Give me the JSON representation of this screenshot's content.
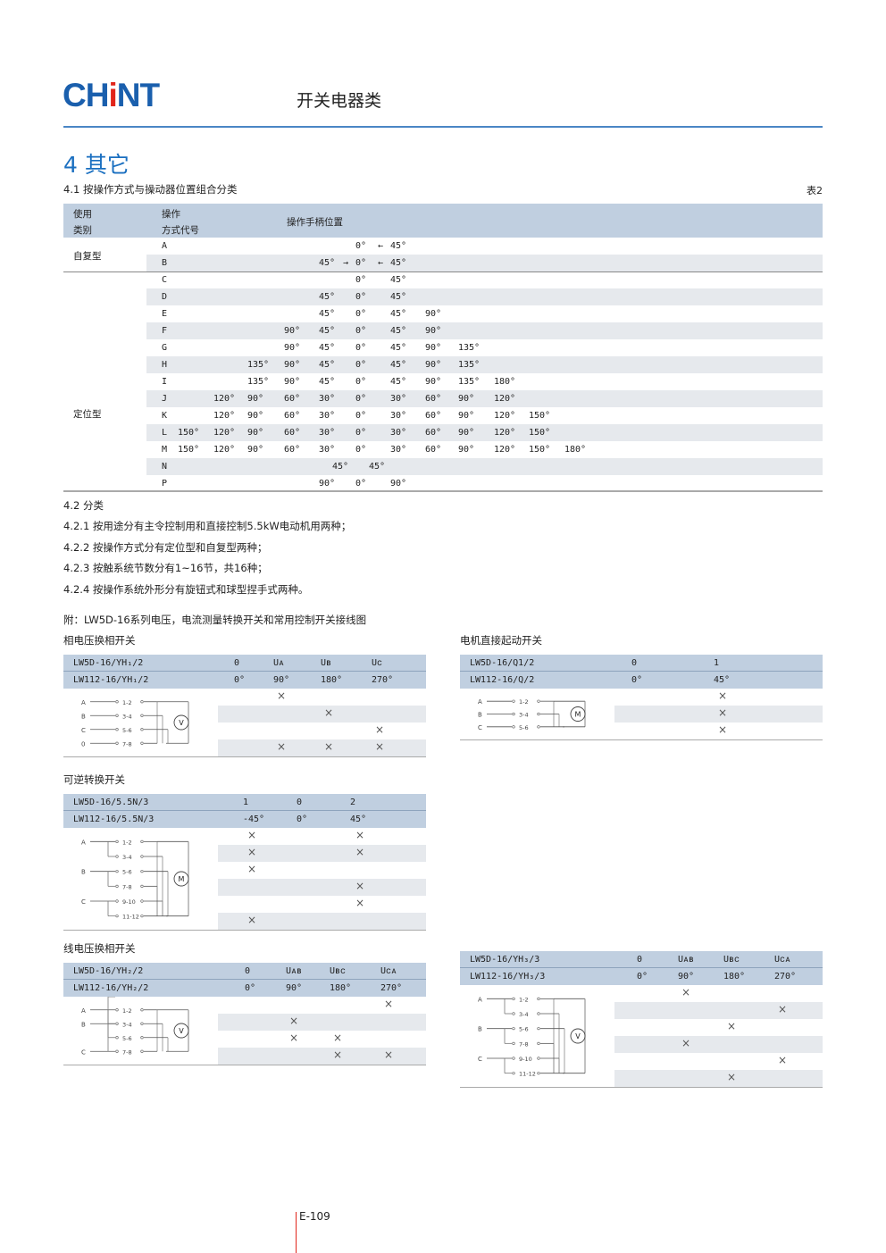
{
  "header": {
    "logo_pre": "CH",
    "logo_i": "i",
    "logo_post": "NT",
    "category": "开关电器类"
  },
  "section": {
    "title": "4 其它",
    "sub": "4.1 按操作方式与操动器位置组合分类",
    "table_no": "表2"
  },
  "main_table": {
    "headers": {
      "col1a": "使用",
      "col1b": "类别",
      "col2a": "操作",
      "col2b": "方式代号",
      "col3": "操作手柄位置"
    },
    "categories": [
      {
        "label": "自复型",
        "rows": [
          "A",
          "B"
        ]
      },
      {
        "label": "定位型",
        "rows": [
          "C",
          "D",
          "E",
          "F",
          "G",
          "H",
          "I",
          "J",
          "K",
          "L",
          "M",
          "N",
          "P"
        ]
      }
    ],
    "arrow_left": "←",
    "arrow_right": "→",
    "rows": [
      {
        "code": "A",
        "positions": [
          "",
          "",
          "",
          "",
          "",
          "0°",
          "45°",
          "",
          "",
          "",
          "",
          ""
        ],
        "arrows": [
          "",
          "left"
        ]
      },
      {
        "code": "B",
        "positions": [
          "",
          "",
          "",
          "",
          "45°",
          "0°",
          "45°",
          "",
          "",
          "",
          "",
          ""
        ],
        "arrows": [
          "right",
          "left"
        ]
      },
      {
        "code": "C",
        "positions": [
          "",
          "",
          "",
          "",
          "",
          "0°",
          "45°",
          "",
          "",
          "",
          "",
          ""
        ]
      },
      {
        "code": "D",
        "positions": [
          "",
          "",
          "",
          "",
          "45°",
          "0°",
          "45°",
          "",
          "",
          "",
          "",
          ""
        ]
      },
      {
        "code": "E",
        "positions": [
          "",
          "",
          "",
          "",
          "45°",
          "0°",
          "45°",
          "90°",
          "",
          "",
          "",
          ""
        ]
      },
      {
        "code": "F",
        "positions": [
          "",
          "",
          "",
          "90°",
          "45°",
          "0°",
          "45°",
          "90°",
          "",
          "",
          "",
          ""
        ]
      },
      {
        "code": "G",
        "positions": [
          "",
          "",
          "",
          "90°",
          "45°",
          "0°",
          "45°",
          "90°",
          "135°",
          "",
          "",
          ""
        ]
      },
      {
        "code": "H",
        "positions": [
          "",
          "",
          "135°",
          "90°",
          "45°",
          "0°",
          "45°",
          "90°",
          "135°",
          "",
          "",
          ""
        ]
      },
      {
        "code": "I",
        "positions": [
          "",
          "",
          "135°",
          "90°",
          "45°",
          "0°",
          "45°",
          "90°",
          "135°",
          "180°",
          "",
          ""
        ]
      },
      {
        "code": "J",
        "positions": [
          "",
          "120°",
          "90°",
          "60°",
          "30°",
          "0°",
          "30°",
          "60°",
          "90°",
          "120°",
          "",
          ""
        ]
      },
      {
        "code": "K",
        "positions": [
          "",
          "120°",
          "90°",
          "60°",
          "30°",
          "0°",
          "30°",
          "60°",
          "90°",
          "120°",
          "150°",
          ""
        ]
      },
      {
        "code": "L",
        "positions": [
          "150°",
          "120°",
          "90°",
          "60°",
          "30°",
          "0°",
          "30°",
          "60°",
          "90°",
          "120°",
          "150°",
          ""
        ]
      },
      {
        "code": "M",
        "positions": [
          "150°",
          "120°",
          "90°",
          "60°",
          "30°",
          "0°",
          "30°",
          "60°",
          "90°",
          "120°",
          "150°",
          "180°"
        ]
      },
      {
        "code": "N",
        "positions": [
          "",
          "",
          "",
          "",
          "45°",
          "45°",
          "",
          "",
          "",
          "",
          "",
          ""
        ]
      },
      {
        "code": "P",
        "positions": [
          "",
          "",
          "",
          "",
          "90°",
          "0°",
          "90°",
          "",
          "",
          "",
          "",
          ""
        ]
      }
    ]
  },
  "classification": {
    "title": "4.2 分类",
    "items": [
      "4.2.1 按用途分有主令控制用和直接控制5.5kW电动机用两种；",
      "4.2.2 按操作方式分有定位型和自复型两种；",
      "4.2.3 按触系统节数分有1~16节，共16种；",
      "4.2.4 按操作系统外形分有旋钮式和球型捏手式两种。"
    ]
  },
  "appendix": "附：LW5D-16系列电压，电流测量转换开关和常用控制开关接线图",
  "switches": [
    {
      "id": "yh1",
      "title": "相电压换相开关",
      "header1": [
        "LW5D-16/YH₁/2",
        "0",
        "Uᴀ",
        "Uʙ",
        "Uᴄ"
      ],
      "header2": [
        "LW112-16/YH₁/2",
        "0°",
        "90°",
        "180°",
        "270°"
      ],
      "marks": [
        [
          "",
          "×",
          "",
          ""
        ],
        [
          "",
          "",
          "×",
          ""
        ],
        [
          "",
          "",
          "",
          "×"
        ],
        [
          "",
          "×",
          "×",
          "×"
        ]
      ],
      "diagram": {
        "phases": [
          "A",
          "B",
          "C",
          "0"
        ],
        "terminals": [
          "1-2",
          "3-4",
          "5-6",
          "7-8"
        ],
        "meter": "V"
      }
    },
    {
      "id": "motor",
      "title": "电机直接起动开关",
      "header1": [
        "LW5D-16/Q1/2",
        "0",
        "1"
      ],
      "header2": [
        "LW112-16/Q/2",
        "0°",
        "45°"
      ],
      "marks": [
        [
          "",
          "×"
        ],
        [
          "",
          "×"
        ],
        [
          "",
          "×"
        ]
      ],
      "diagram": {
        "phases": [
          "A",
          "B",
          "C"
        ],
        "terminals": [
          "1-2",
          "3-4",
          "5-6"
        ],
        "meter": "M"
      }
    },
    {
      "id": "rev",
      "title": "可逆转换开关",
      "header1": [
        "LW5D-16/5.5N/3",
        "1",
        "0",
        "2"
      ],
      "header2": [
        "LW112-16/5.5N/3",
        "-45°",
        "0°",
        "45°"
      ],
      "marks": [
        [
          "×",
          "",
          "×"
        ],
        [
          "×",
          "",
          "×"
        ],
        [
          "×",
          "",
          ""
        ],
        [
          "",
          "",
          "×"
        ],
        [
          "",
          "",
          "×"
        ],
        [
          "×",
          "",
          ""
        ]
      ],
      "diagram": {
        "phases": [
          "A",
          "B",
          "C"
        ],
        "terminals": [
          "1-2",
          "3-4",
          "5-6",
          "7-8",
          "9-10",
          "11-12"
        ],
        "meter": "M"
      }
    },
    {
      "id": "yh2",
      "title": "线电压换相开关",
      "header1": [
        "LW5D-16/YH₂/2",
        "0",
        "Uᴀʙ",
        "Uʙᴄ",
        "Uᴄᴀ"
      ],
      "header2": [
        "LW112-16/YH₂/2",
        "0°",
        "90°",
        "180°",
        "270°"
      ],
      "marks": [
        [
          "",
          "",
          "",
          "×"
        ],
        [
          "",
          "×",
          "",
          ""
        ],
        [
          "",
          "×",
          "×",
          ""
        ],
        [
          "",
          "",
          "×",
          "×"
        ]
      ],
      "diagram": {
        "phases": [
          "A",
          "B",
          "C"
        ],
        "terminals": [
          "1-2",
          "3-4",
          "5-6",
          "7-8"
        ],
        "meter": "V"
      }
    },
    {
      "id": "yh3",
      "title": "",
      "header1": [
        "LW5D-16/YH₃/3",
        "0",
        "Uᴀʙ",
        "Uʙᴄ",
        "Uᴄᴀ"
      ],
      "header2": [
        "LW112-16/YH₃/3",
        "0°",
        "90°",
        "180°",
        "270°"
      ],
      "marks": [
        [
          "",
          "×",
          "",
          ""
        ],
        [
          "",
          "",
          "",
          "×"
        ],
        [
          "",
          "",
          "×",
          ""
        ],
        [
          "",
          "×",
          "",
          ""
        ],
        [
          "",
          "",
          "",
          "×"
        ],
        [
          "",
          "",
          "×",
          ""
        ]
      ],
      "diagram": {
        "phases": [
          "A",
          "B",
          "C"
        ],
        "terminals": [
          "1-2",
          "3-4",
          "5-6",
          "7-8",
          "9-10",
          "11-12"
        ],
        "meter": "V"
      }
    }
  ],
  "page_number": "E-109",
  "colors": {
    "brand": "#1a5fad",
    "header_fill": "#c0cfe0",
    "stripe": "#e6e9ed",
    "accent_red": "#e1251b"
  }
}
